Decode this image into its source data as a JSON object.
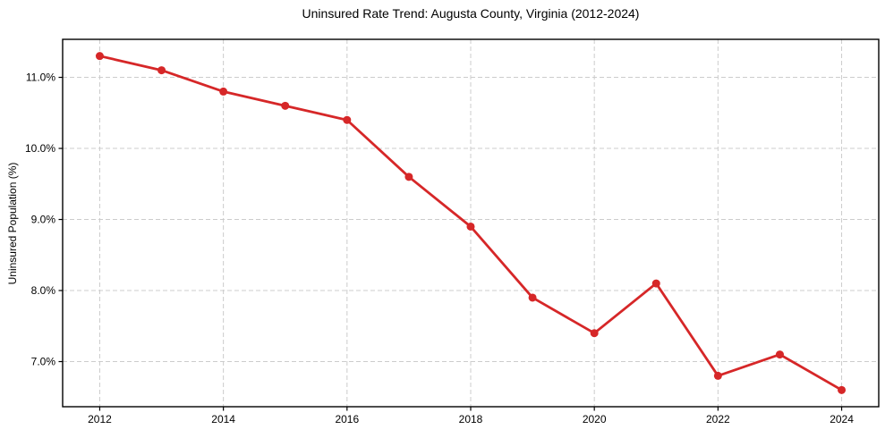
{
  "chart_data": {
    "type": "line",
    "title": "Uninsured Rate Trend: Augusta County, Virginia (2012-2024)",
    "xlabel": "",
    "ylabel": "Uninsured Population (%)",
    "x": [
      2012,
      2013,
      2014,
      2015,
      2016,
      2017,
      2018,
      2019,
      2020,
      2021,
      2022,
      2023,
      2024
    ],
    "series": [
      {
        "name": "Uninsured rate (%)",
        "values": [
          11.3,
          11.1,
          10.8,
          10.6,
          10.4,
          9.6,
          8.9,
          7.9,
          7.4,
          8.1,
          6.8,
          7.1,
          6.6
        ]
      }
    ],
    "x_ticks": [
      2012,
      2014,
      2016,
      2018,
      2020,
      2022,
      2024
    ],
    "x_tick_labels": [
      "2012",
      "2014",
      "2016",
      "2018",
      "2020",
      "2022",
      "2024"
    ],
    "y_ticks": [
      7.0,
      8.0,
      9.0,
      10.0,
      11.0
    ],
    "y_tick_labels": [
      "7.0%",
      "8.0%",
      "9.0%",
      "10.0%",
      "11.0%"
    ],
    "xlim": [
      2011.4,
      2024.6
    ],
    "ylim": [
      6.365,
      11.535
    ],
    "grid": true,
    "grid_style": "dashed",
    "legend": false,
    "line_color": "#d62728",
    "marker": "circle",
    "grid_color": "#cccccc",
    "spine_color": "#000000",
    "background_color": "#ffffff"
  }
}
